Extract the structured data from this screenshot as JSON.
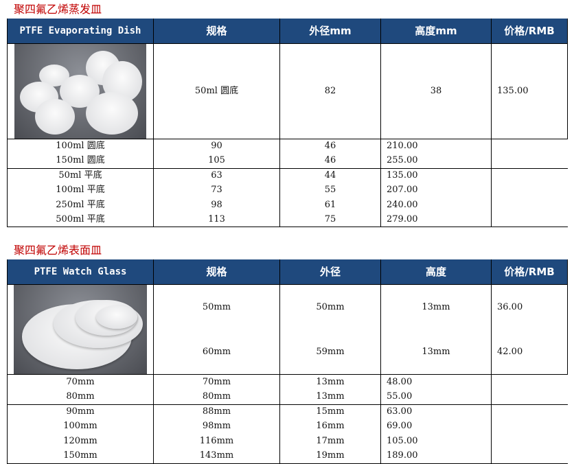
{
  "dish": {
    "title": "聚四氟乙烯蒸发皿",
    "headers": [
      "PTFE Evaporating Dish",
      "规格",
      "外径mm",
      "高度mm",
      "价格/RMB"
    ],
    "groups": [
      [
        [
          "50ml 圆底",
          "82",
          "38",
          "135.00"
        ]
      ],
      [
        [
          "100ml 圆底",
          "90",
          "46",
          "210.00"
        ],
        [
          "150ml 圆底",
          "105",
          "46",
          "255.00"
        ]
      ],
      [
        [
          "50ml 平底",
          "63",
          "44",
          "135.00"
        ],
        [
          "100ml 平底",
          "73",
          "55",
          "207.00"
        ],
        [
          "250ml 平底",
          "98",
          "61",
          "240.00"
        ],
        [
          "500ml 平底",
          "113",
          "75",
          "279.00"
        ]
      ]
    ]
  },
  "watch": {
    "title": "聚四氟乙烯表面皿",
    "headers": [
      "PTFE Watch Glass",
      "规格",
      "外径",
      "高度",
      "价格/RMB"
    ],
    "groups": [
      [
        [
          "50mm",
          "50mm",
          "13mm",
          "36.00"
        ],
        [
          "60mm",
          "59mm",
          "13mm",
          "42.00"
        ]
      ],
      [
        [
          "70mm",
          "70mm",
          "13mm",
          "48.00"
        ],
        [
          "80mm",
          "80mm",
          "13mm",
          "55.00"
        ]
      ],
      [
        [
          "90mm",
          "88mm",
          "15mm",
          "63.00"
        ],
        [
          "100mm",
          "98mm",
          "16mm",
          "69.00"
        ],
        [
          "120mm",
          "116mm",
          "17mm",
          "105.00"
        ],
        [
          "150mm",
          "143mm",
          "19mm",
          "189.00"
        ]
      ]
    ]
  }
}
